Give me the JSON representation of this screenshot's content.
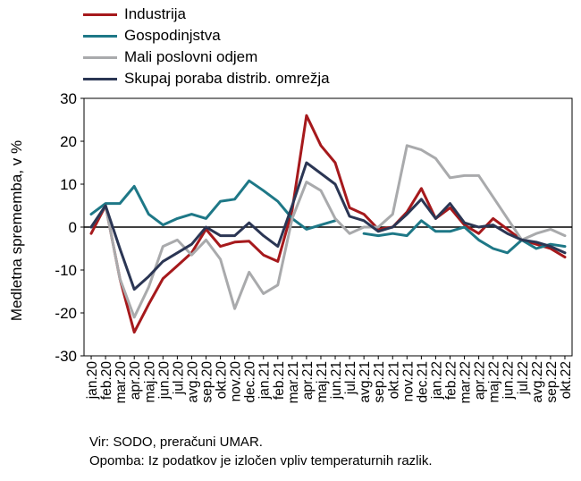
{
  "chart_data": {
    "type": "line",
    "title": "",
    "xlabel": "",
    "ylabel": "Medletna sprememba, v %",
    "ylim": [
      -30,
      30
    ],
    "yticks": [
      -30,
      -20,
      -10,
      0,
      10,
      20,
      30
    ],
    "grid": false,
    "legend_position": "top-left",
    "categories": [
      "jan.20",
      "feb.20",
      "mar.20",
      "apr.20",
      "maj.20",
      "jun.20",
      "jul.20",
      "avg.20",
      "sep.20",
      "okt.20",
      "nov.20",
      "dec.20",
      "jan.21",
      "feb.21",
      "mar.21",
      "apr.21",
      "maj.21",
      "jun.21",
      "jul.21",
      "avg.21",
      "sep.21",
      "okt.21",
      "nov.21",
      "dec.21",
      "jan.22",
      "feb.22",
      "mar.22",
      "apr.22",
      "maj.22",
      "jun.22",
      "jul.22",
      "avg.22",
      "sep.22",
      "okt.22"
    ],
    "series": [
      {
        "name": "Industrija",
        "color": "#a6191c",
        "values": [
          -1.5,
          5,
          -12,
          -24.5,
          -18,
          -12,
          -9,
          -6,
          -0.5,
          -4.5,
          -3.5,
          -3.3,
          -6.5,
          -8,
          4,
          26,
          19,
          15,
          4.5,
          3,
          -0.5,
          0,
          3.5,
          9,
          2,
          4.5,
          0.5,
          -1.5,
          2,
          -0.5,
          -3,
          -4,
          -5,
          -7
        ]
      },
      {
        "name": "Gospodinjstva",
        "color": "#1e7887",
        "values": [
          3,
          5.5,
          5.5,
          9.5,
          3,
          0.5,
          2,
          3,
          2,
          6,
          6.5,
          10.8,
          8.5,
          6,
          2,
          -0.5,
          0.5,
          1.5,
          null,
          -1.5,
          -2,
          -1.5,
          -2,
          1.5,
          -1,
          -1,
          0,
          -3,
          -5,
          -6,
          -3,
          -5,
          -4,
          -4.5
        ]
      },
      {
        "name": "Mali poslovni odjem",
        "color": "#a9aaac",
        "values": [
          0,
          5,
          -12,
          -21,
          -14,
          -4.5,
          -3,
          -6.5,
          -3,
          -7.5,
          -19,
          -10.5,
          -15.5,
          -13.5,
          2,
          10.5,
          8.5,
          2,
          -1.5,
          0,
          0,
          3,
          19,
          18,
          16,
          11.5,
          12,
          12,
          7,
          2,
          -3,
          -1.5,
          -0.5,
          -2
        ]
      },
      {
        "name": "Skupaj poraba distrib. omrežja",
        "color": "#2b3654",
        "values": [
          0,
          5,
          -5,
          -14.5,
          -11.5,
          -8,
          -6,
          -4,
          0,
          -2,
          -2,
          1,
          -2,
          -4.5,
          5,
          15,
          12.5,
          10,
          2.5,
          1.5,
          -1,
          0,
          3,
          6.5,
          2,
          5.5,
          1,
          0,
          0.5,
          -1.5,
          -3,
          -3.5,
          -4.5,
          -6
        ]
      }
    ]
  },
  "footer": {
    "source": "Vir: SODO, preračuni UMAR.",
    "note": "Opomba: Iz podatkov je izločen vpliv temperaturnih razlik."
  }
}
